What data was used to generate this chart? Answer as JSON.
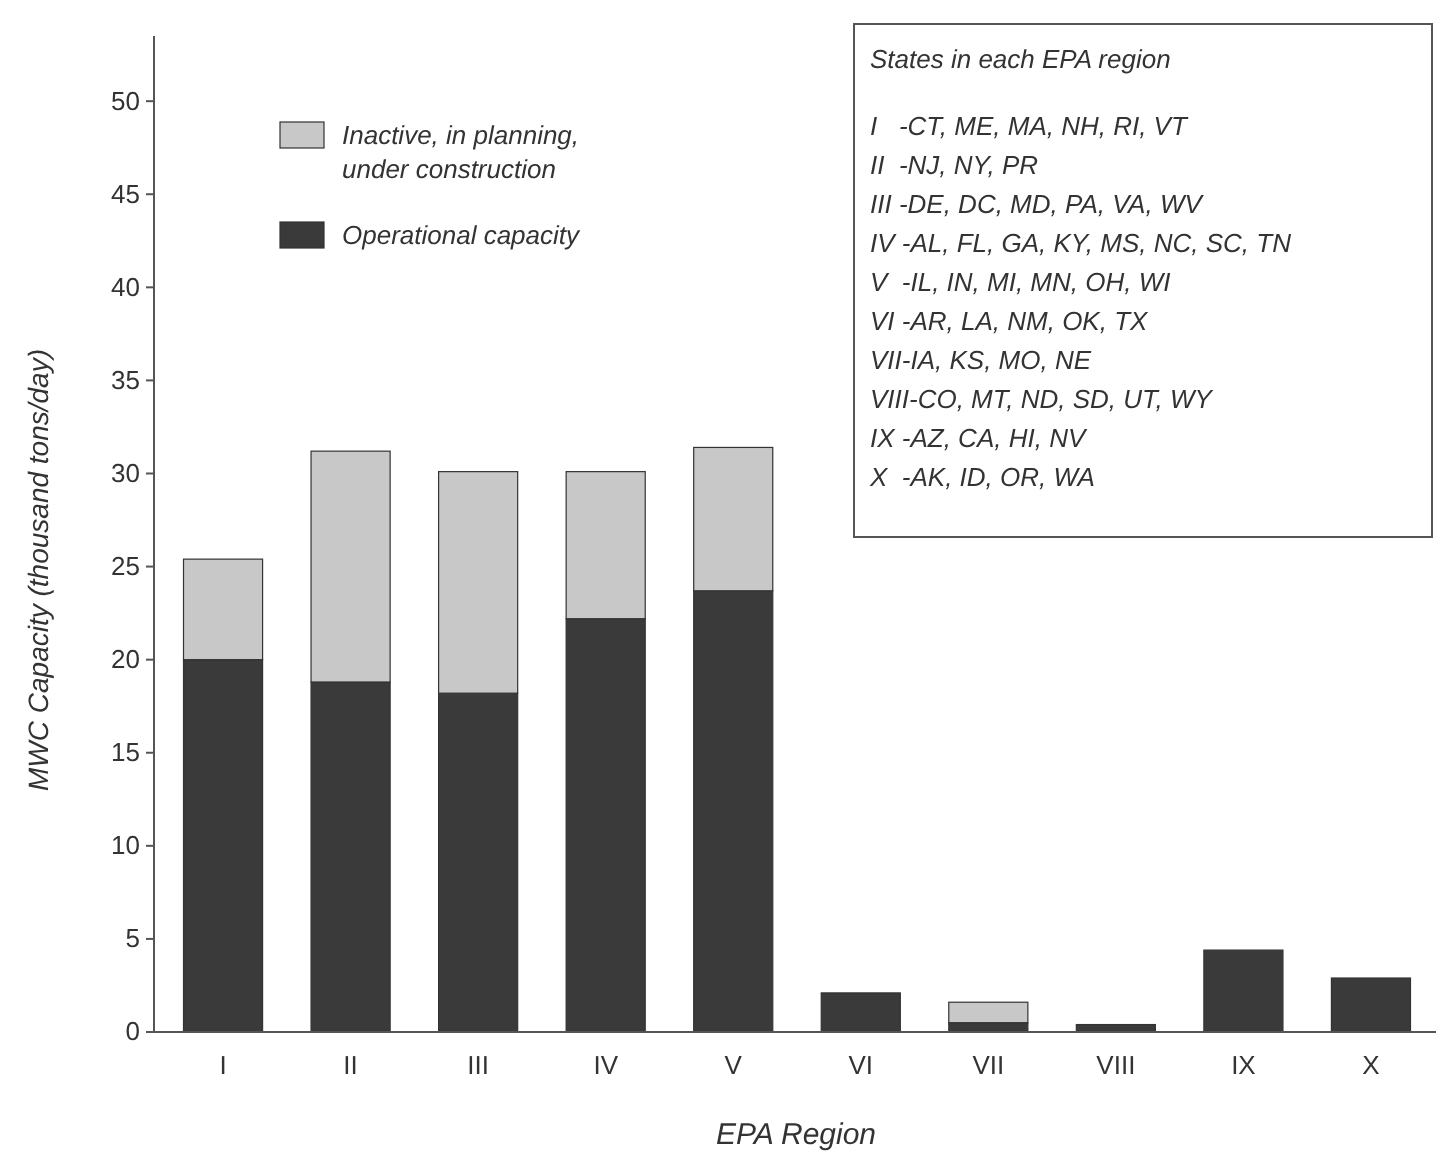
{
  "chart_data": {
    "type": "bar",
    "stacked": true,
    "xlabel": "EPA Region",
    "ylabel": "MWC Capacity (thousand tons/day)",
    "categories": [
      "I",
      "II",
      "III",
      "IV",
      "V",
      "VI",
      "VII",
      "VIII",
      "IX",
      "X"
    ],
    "series": [
      {
        "name": "Operational capacity",
        "color": "#3a3a3a",
        "values": [
          20,
          18.8,
          18.2,
          22.2,
          23.7,
          2.1,
          0.5,
          0.4,
          4.4,
          2.9
        ]
      },
      {
        "name": "Inactive, in planning, under construction",
        "color": "#c8c8c8",
        "values": [
          5.4,
          12.4,
          11.9,
          7.9,
          7.7,
          0,
          1.1,
          0,
          0,
          0
        ]
      }
    ],
    "ylim": [
      0,
      53.5
    ],
    "yticks": [
      0,
      5,
      10,
      15,
      20,
      25,
      30,
      35,
      40,
      45,
      50
    ],
    "grid": false,
    "legend": "top left",
    "annotations": [
      "States in each EPA region",
      "I   -CT, ME, MA, NH, RI, VT",
      "II  -NJ, NY, PR",
      "III -DE, DC, MD, PA, VA, WV",
      "IV -AL, FL, GA, KY, MS, NC, SC, TN",
      "V  -IL, IN, MI, MN, OH, WI",
      "VI -AR, LA, NM, OK, TX",
      "VII-IA, KS, MO, NE",
      "VIII-CO, MT, ND, SD, UT, WY",
      "IX -AZ, CA, HI, NV",
      "X  -AK, ID, OR, WA"
    ]
  }
}
